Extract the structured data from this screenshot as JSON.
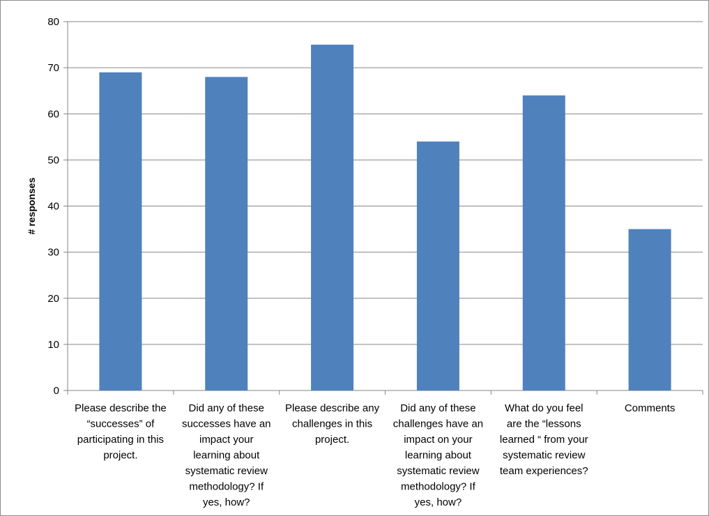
{
  "chart_data": {
    "type": "bar",
    "title": "",
    "xlabel": "",
    "ylabel": "# responses",
    "ylim": [
      0,
      80
    ],
    "yticks": [
      0,
      10,
      20,
      30,
      40,
      50,
      60,
      70,
      80
    ],
    "grid": true,
    "legend": "none",
    "bar_color": "#4f81bd",
    "categories": [
      [
        "Please describe the",
        "“successes” of",
        "participating in this",
        "project."
      ],
      [
        "Did any of these",
        "successes have an",
        "impact your",
        "learning about",
        "systematic review",
        "methodology? If",
        "yes, how?"
      ],
      [
        "Please describe any",
        "challenges in this",
        "project."
      ],
      [
        "Did any of these",
        "challenges have an",
        "impact on your",
        "learning about",
        "systematic review",
        "methodology? If",
        "yes, how?"
      ],
      [
        "What do you feel",
        "are the “lessons",
        "learned “ from your",
        "systematic review",
        "team experiences?"
      ],
      [
        "Comments"
      ]
    ],
    "values": [
      69,
      68,
      75,
      54,
      64,
      35
    ]
  }
}
